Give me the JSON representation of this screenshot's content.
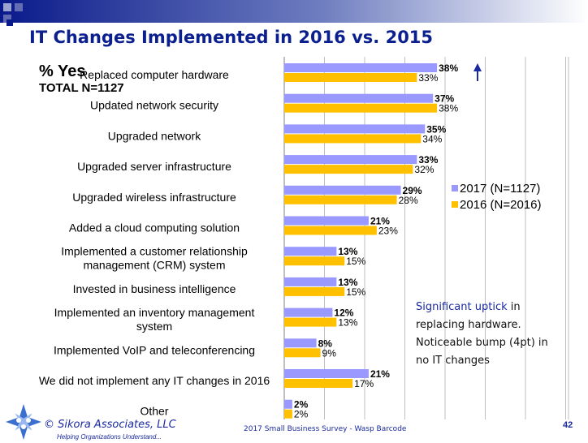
{
  "slide": {
    "title": "IT Changes Implemented in 2016 vs. 2015",
    "pct_yes": "% Yes",
    "total": "TOTAL N=1127",
    "note": {
      "highlight": "Significant uptick",
      "rest": " in replacing hardware. Noticeable bump (4pt) in no IT changes"
    },
    "copyright": "© Sikora Associates, LLC",
    "tagline": "Helping Organizations Understand...",
    "source": "2017 Small Business Survey - Wasp Barcode",
    "page_number": "42"
  },
  "colors": {
    "series_2017": "#9999ff",
    "series_2016": "#ffc000",
    "title": "#0b1f8f",
    "arrow": "#1a2aa0"
  },
  "chart_data": {
    "type": "bar",
    "orientation": "horizontal",
    "categories": [
      [
        "Replaced computer hardware"
      ],
      [
        "Updated network security"
      ],
      [
        "Upgraded network"
      ],
      [
        "Upgraded server infrastructure"
      ],
      [
        "Upgraded wireless infrastructure"
      ],
      [
        "Added a cloud computing solution"
      ],
      [
        "Implemented a customer relationship",
        "management (CRM) system"
      ],
      [
        "Invested in business intelligence"
      ],
      [
        "Implemented an inventory management",
        "system"
      ],
      [
        "Implemented VoIP and teleconferencing"
      ],
      [
        "We did not implement any IT changes in 2016"
      ],
      [
        "Other"
      ]
    ],
    "series": [
      {
        "name": "2017 (N=1127)",
        "values": [
          38,
          37,
          35,
          33,
          29,
          21,
          13,
          13,
          12,
          8,
          21,
          2
        ]
      },
      {
        "name": "2016 (N=2016)",
        "values": [
          33,
          38,
          34,
          32,
          28,
          23,
          15,
          15,
          13,
          9,
          17,
          2
        ]
      }
    ],
    "xlim": [
      0,
      40
    ],
    "grid": true,
    "legend": "right",
    "annotation": "up-arrow next to Replaced computer hardware 2017 bar"
  }
}
